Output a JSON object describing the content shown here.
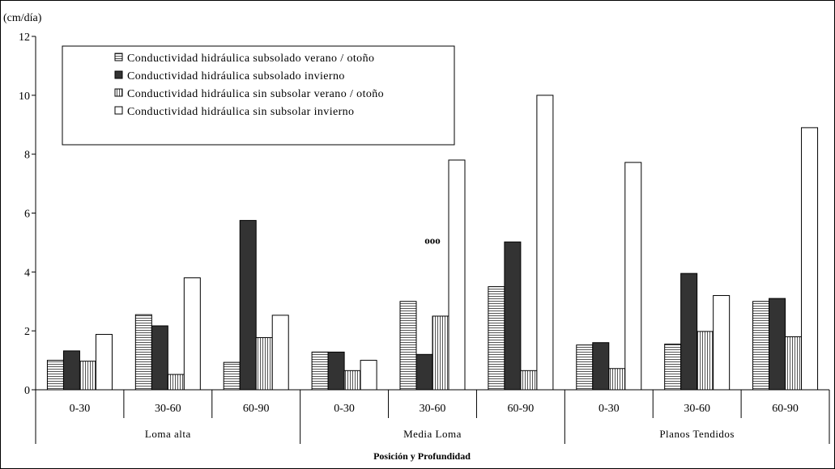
{
  "chart_data": {
    "type": "bar",
    "title": "",
    "ylabel": "(cm/día)",
    "xlabel": "Posición y Profundidad",
    "ylim": [
      0,
      12
    ],
    "yticks": [
      0,
      2,
      4,
      6,
      8,
      10,
      12
    ],
    "grid": false,
    "legend_placement": "top-left",
    "groups": [
      "Loma alta",
      "Media Loma",
      "Planos Tendidos"
    ],
    "categories": [
      "0-30",
      "30-60",
      "60-90",
      "0-30",
      "30-60",
      "60-90",
      "0-30",
      "30-60",
      "60-90"
    ],
    "annotations": [
      {
        "text": "ooo",
        "category_index": 4,
        "y": 4.95
      }
    ],
    "series": [
      {
        "name": "Conductividad hidráulica subsolado verano / otoño",
        "pattern": "hstripe",
        "color": "#ffffff",
        "values": [
          1.0,
          2.55,
          0.93,
          1.28,
          3.0,
          3.5,
          1.52,
          1.55,
          3.0
        ]
      },
      {
        "name": "Conductividad hidráulica  subsolado invierno",
        "pattern": "solid",
        "color": "#333333",
        "values": [
          1.32,
          2.17,
          5.75,
          1.28,
          1.2,
          5.02,
          1.6,
          3.95,
          3.1
        ]
      },
      {
        "name": "Conductividad hidráulica sin subsolar verano / otoño",
        "pattern": "vstripe",
        "color": "#ffffff",
        "values": [
          0.97,
          0.52,
          1.77,
          0.65,
          2.5,
          0.65,
          0.72,
          1.98,
          1.8
        ]
      },
      {
        "name": "Conductividad hidráulica sin subsolar invierno",
        "pattern": "none",
        "color": "#ffffff",
        "values": [
          1.88,
          3.8,
          2.53,
          1.0,
          7.8,
          10.0,
          7.72,
          3.2,
          8.9
        ]
      }
    ]
  }
}
